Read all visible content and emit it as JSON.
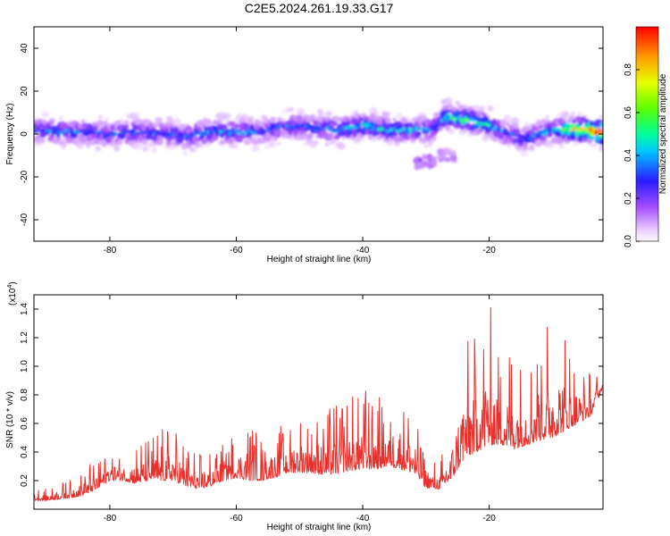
{
  "title": "C2E5.2024.261.19.33.G17",
  "colors": {
    "snr_line": "#e8312d",
    "axes": "#000000",
    "spectrum_low": "#c9a8f2",
    "spectrum_high": "#ff0000"
  },
  "colorbar": {
    "label": "Normalized spectral amplitude",
    "ticks": [
      "0.0",
      "0.2",
      "0.4",
      "0.6",
      "0.8"
    ],
    "range": [
      0,
      1
    ],
    "colormap": "rainbow (white-violet-blue-cyan-green-yellow-red)"
  },
  "chart_data": [
    {
      "type": "heatmap",
      "title": "C2E5.2024.261.19.33.G17",
      "xlabel": "Height of straight line (km)",
      "ylabel": "Frequency (Hz)",
      "xlim": [
        -92,
        -2
      ],
      "ylim": [
        -50,
        50
      ],
      "x_ticks": [
        -80,
        -60,
        -40,
        -20
      ],
      "y_ticks": [
        40,
        20,
        0,
        -20,
        -40
      ],
      "x_tick_labels": [
        "-80",
        "-60",
        "-40",
        "-20"
      ],
      "y_tick_labels": [
        "40",
        "20",
        "0",
        "-20",
        "-40"
      ],
      "ridge": {
        "x": [
          -92,
          -88,
          -84,
          -80,
          -76,
          -72,
          -68,
          -64,
          -60,
          -56,
          -52,
          -48,
          -44,
          -40,
          -36,
          -32,
          -29,
          -27,
          -24,
          -20,
          -17,
          -14,
          -11,
          -8,
          -5,
          -2
        ],
        "freq": [
          2,
          1,
          1,
          0,
          1,
          0,
          -1,
          1,
          1,
          1,
          4,
          3,
          2,
          4,
          2,
          2,
          2,
          8,
          7,
          4,
          0,
          -2,
          1,
          2,
          2,
          1
        ],
        "amplitude": [
          0.3,
          0.35,
          0.3,
          0.3,
          0.3,
          0.28,
          0.3,
          0.35,
          0.35,
          0.3,
          0.3,
          0.32,
          0.35,
          0.4,
          0.4,
          0.38,
          0.3,
          0.45,
          0.55,
          0.4,
          0.3,
          0.3,
          0.35,
          0.55,
          0.75,
          0.98
        ]
      },
      "secondary_blobs": [
        {
          "x": -30,
          "freq": -13,
          "amplitude": 0.15
        },
        {
          "x": -27,
          "freq": -10,
          "amplitude": 0.1
        }
      ]
    },
    {
      "type": "line",
      "xlabel": "Height of straight line (km)",
      "ylabel": "SNR (10 * v/v)",
      "y_multiplier": "(x10",
      "y_multiplier_exponent": "4",
      "y_multiplier_close": ")",
      "xlim": [
        -92,
        -2
      ],
      "ylim": [
        0,
        1.5
      ],
      "x_ticks": [
        -80,
        -60,
        -40,
        -20
      ],
      "y_ticks": [
        0.2,
        0.4,
        0.6,
        0.8,
        1.0,
        1.2,
        1.4
      ],
      "x_tick_labels": [
        "-80",
        "-60",
        "-40",
        "-20"
      ],
      "y_tick_labels": [
        "0.2",
        "0.4",
        "0.6",
        "0.8",
        "1.0",
        "1.2",
        "1.4"
      ],
      "series": [
        {
          "x": [
            -92,
            -90,
            -88,
            -86,
            -84,
            -82,
            -80,
            -78,
            -76,
            -74,
            -72,
            -70,
            -68,
            -66,
            -64,
            -62,
            -60,
            -58,
            -56,
            -54,
            -52,
            -50,
            -48,
            -46,
            -44,
            -42,
            -40,
            -38,
            -36,
            -34,
            -32,
            -30,
            -28,
            -26,
            -24,
            -22,
            -20,
            -18,
            -16,
            -14,
            -12,
            -10,
            -8,
            -6,
            -4,
            -2
          ],
          "baseline": [
            0.06,
            0.06,
            0.07,
            0.08,
            0.1,
            0.14,
            0.2,
            0.2,
            0.18,
            0.2,
            0.2,
            0.2,
            0.16,
            0.14,
            0.16,
            0.2,
            0.22,
            0.2,
            0.2,
            0.22,
            0.25,
            0.26,
            0.25,
            0.24,
            0.25,
            0.27,
            0.28,
            0.28,
            0.3,
            0.28,
            0.25,
            0.15,
            0.14,
            0.2,
            0.35,
            0.4,
            0.45,
            0.45,
            0.42,
            0.45,
            0.48,
            0.5,
            0.55,
            0.6,
            0.65,
            0.85
          ],
          "peak": [
            0.16,
            0.14,
            0.2,
            0.22,
            0.3,
            0.35,
            0.45,
            0.38,
            0.44,
            0.48,
            0.55,
            0.6,
            0.45,
            0.38,
            0.42,
            0.5,
            0.52,
            0.65,
            0.5,
            0.55,
            0.62,
            0.68,
            0.7,
            0.72,
            0.75,
            0.8,
            0.9,
            0.8,
            0.75,
            0.85,
            0.7,
            0.4,
            0.3,
            0.6,
            1.25,
            1.3,
            1.46,
            1.1,
            1.2,
            1.05,
            1.3,
            1.35,
            1.25,
            1.0,
            0.95,
            0.92
          ]
        }
      ]
    }
  ]
}
